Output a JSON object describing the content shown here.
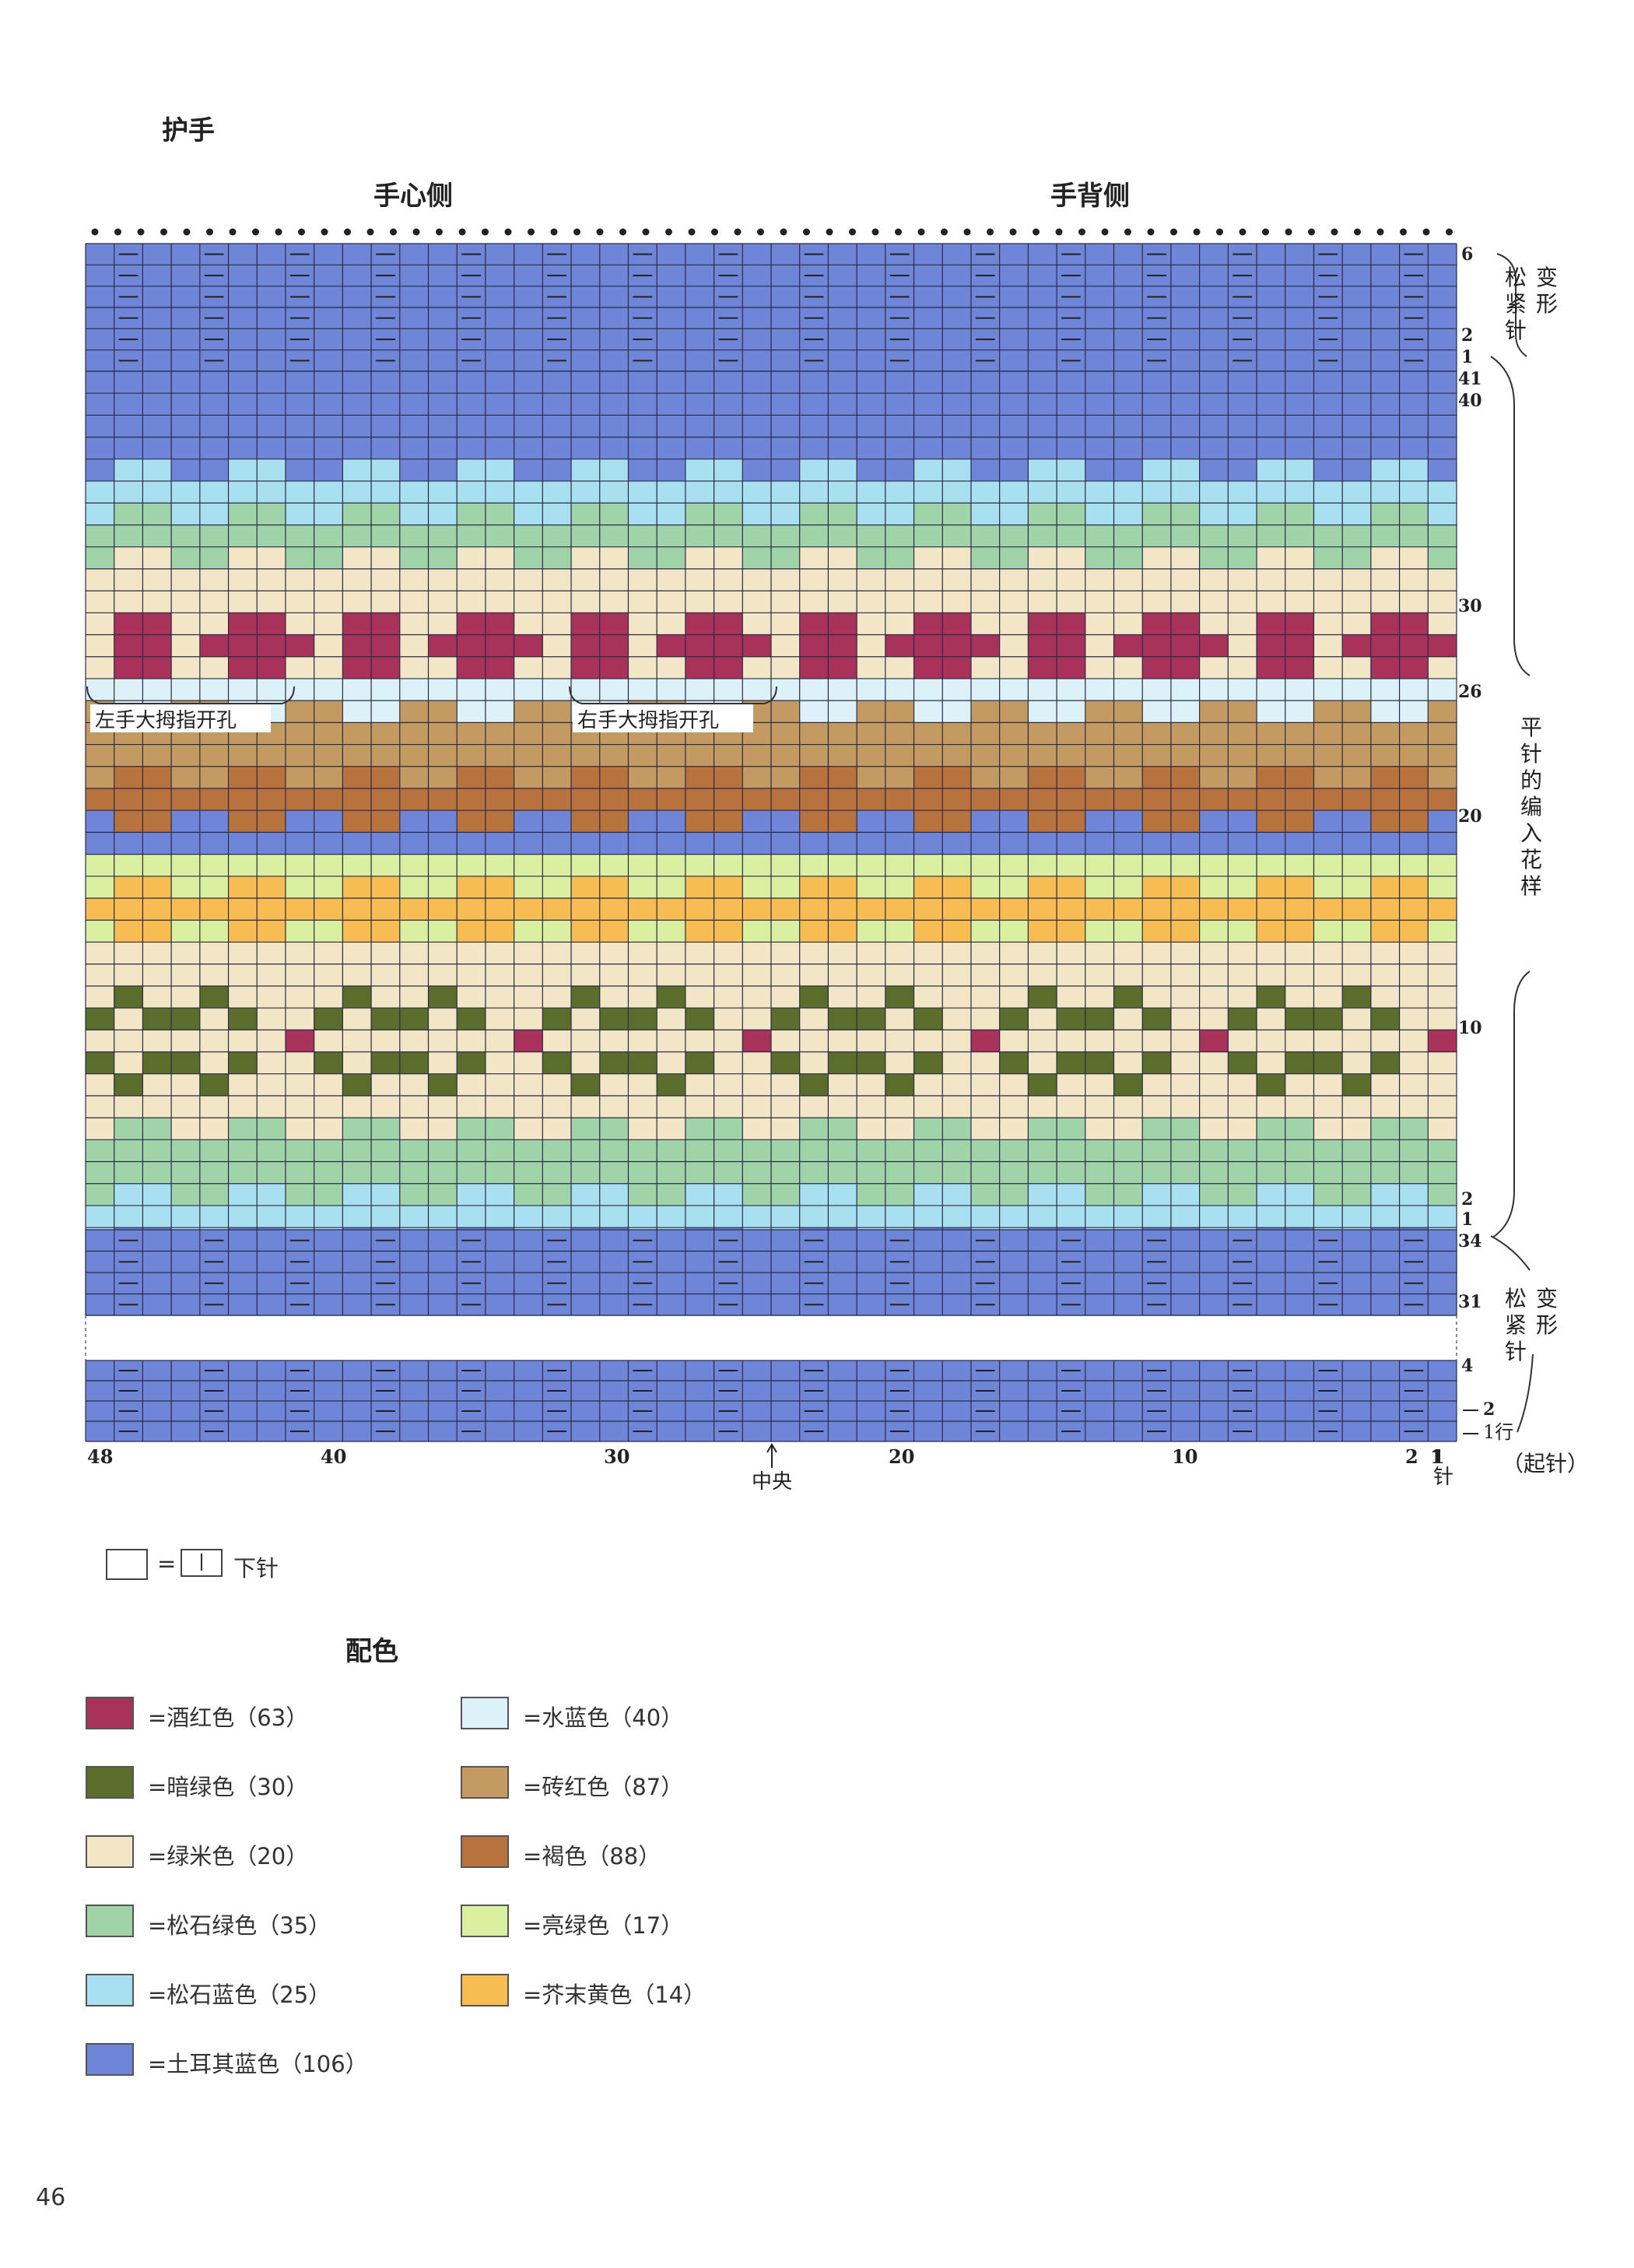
{
  "title": "护手",
  "header": {
    "left": "手心侧",
    "right": "手背侧"
  },
  "chart_data": {
    "type": "colorwork_chart",
    "stitches": 48,
    "stitch_labels": [
      "48",
      "40",
      "30",
      "20",
      "10",
      "2",
      "1"
    ],
    "center_label": "中央",
    "stitch_unit": "针",
    "thumb_holes": [
      "左手大拇指开孔",
      "右手大拇指开孔"
    ],
    "right_labels": {
      "top_rows": [
        "6",
        "2",
        "1"
      ],
      "pattern_rows": [
        "41",
        "40",
        "30",
        "26",
        "20",
        "10",
        "2",
        "1"
      ],
      "lower_rows": [
        "34",
        "31",
        "4",
        "2",
        "1行"
      ],
      "col_label": "1",
      "ribbing": "变形松紧针",
      "plain_pattern": "平针的编入花样",
      "cast_on": "（起针）"
    }
  },
  "key": {
    "equals": "=",
    "symbol": "丨",
    "text": "下针"
  },
  "palette": {
    "title": "配色",
    "items": [
      {
        "name": "=酒红色（63）",
        "color": "#a8325a"
      },
      {
        "name": "=暗绿色（30）",
        "color": "#5a6e2c"
      },
      {
        "name": "=绿米色（20）",
        "color": "#f3e6c6"
      },
      {
        "name": "=松石绿色（35）",
        "color": "#9fd4a8"
      },
      {
        "name": "=松石蓝色（25）",
        "color": "#a8e0f2"
      },
      {
        "name": "=土耳其蓝色（106）",
        "color": "#6f86d8"
      },
      {
        "name": "=水蓝色（40）",
        "color": "#dcf1f8"
      },
      {
        "name": "=砖红色（87）",
        "color": "#c39a62"
      },
      {
        "name": "=褐色（88）",
        "color": "#b8723e"
      },
      {
        "name": "=亮绿色（17）",
        "color": "#d9f0a0"
      },
      {
        "name": "=芥末黄色（14）",
        "color": "#f8bd52"
      }
    ]
  },
  "page_number": "46"
}
